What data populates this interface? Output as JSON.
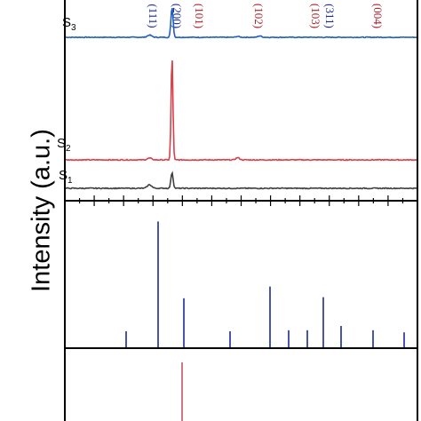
{
  "chart_data": {
    "type": "line",
    "ylabel": "Intensity (a.u.)",
    "colors": {
      "S3": "#1f5fbf",
      "S2": "#d8404a",
      "S1": "#404040",
      "ref_blue": "#1a2a9a",
      "ref_red": "#b0202a",
      "hkl_blue": "#1a2a9a",
      "hkl_red": "#b0202a"
    },
    "x_range": [
      0,
      100
    ],
    "series": [
      {
        "name": "S3",
        "label_main": "S",
        "label_sub": "3",
        "color_key": "S3",
        "baseline": 0,
        "noise": 0.25,
        "peaks": [
          {
            "x": 44.5,
            "height": 3,
            "width": 0.6
          },
          {
            "x": 54.2,
            "height": 40,
            "width": 0.3
          },
          {
            "x": 92.0,
            "height": 1.8,
            "width": 0.5
          },
          {
            "x": 82.5,
            "height": 1.2,
            "width": 0.5
          }
        ]
      },
      {
        "name": "S2",
        "label_main": "S",
        "label_sub": "2",
        "color_key": "S2",
        "baseline": 0,
        "noise": 0.25,
        "peaks": [
          {
            "x": 44.5,
            "height": 2,
            "width": 0.6
          },
          {
            "x": 54.2,
            "height": 118,
            "width": 0.25
          },
          {
            "x": 82.5,
            "height": 2.5,
            "width": 0.5
          }
        ]
      },
      {
        "name": "S1",
        "label_main": "S",
        "label_sub": "1",
        "color_key": "S1",
        "baseline": 0,
        "noise": 0.25,
        "peaks": [
          {
            "x": 44.5,
            "height": 4,
            "width": 0.6
          },
          {
            "x": 54.2,
            "height": 18,
            "width": 0.3
          }
        ]
      }
    ],
    "reference_blue": {
      "color_key": "ref_blue",
      "x": [
        34.5,
        46.5,
        58.8,
        80.5,
        94.0,
        104.5,
        113.5,
        120.5,
        128.5,
        136.5,
        144.5,
        152.5
      ],
      "height": [
        15,
        118,
        46,
        15,
        57,
        16,
        16,
        47,
        20,
        16,
        14,
        20
      ]
    },
    "reference_red": {
      "color_key": "ref_red",
      "x": [
        58.8
      ],
      "height": [
        90
      ]
    },
    "hkl_labels": [
      {
        "text": "(111)",
        "x": 44.5,
        "color_key": "hkl_blue"
      },
      {
        "text": "(200)",
        "x": 54.8,
        "color_key": "hkl_blue"
      },
      {
        "text": "(101)",
        "x": 58.5,
        "color_key": "hkl_red"
      },
      {
        "text": "(102)",
        "x": 74.0,
        "color_key": "hkl_red"
      },
      {
        "text": "(103)",
        "x": 88.0,
        "color_key": "hkl_red"
      },
      {
        "text": "(311)",
        "x": 92.5,
        "color_key": "hkl_blue"
      },
      {
        "text": "(004)",
        "x": 106.0,
        "color_key": "hkl_red"
      }
    ]
  }
}
